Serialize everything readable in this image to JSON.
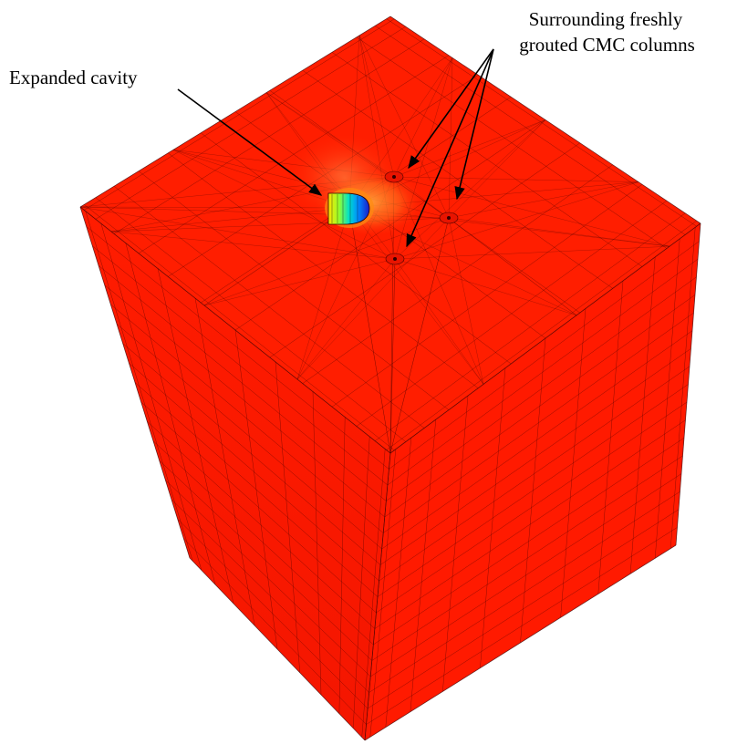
{
  "figure": {
    "annotations": {
      "cavity_label": "Expanded cavity",
      "columns_label_line1": "Surrounding freshly",
      "columns_label_line2": "grouted CMC columns"
    },
    "colors": {
      "soil": "#ff1a00",
      "mesh_lines": "#3a0000",
      "arrow": "#000000",
      "cavity_gradient": [
        "#ffd000",
        "#a0ff30",
        "#00e0c0",
        "#0090ff",
        "#2020d0"
      ]
    },
    "model": {
      "type": "3D finite element mesh block",
      "column_count": 3
    }
  }
}
